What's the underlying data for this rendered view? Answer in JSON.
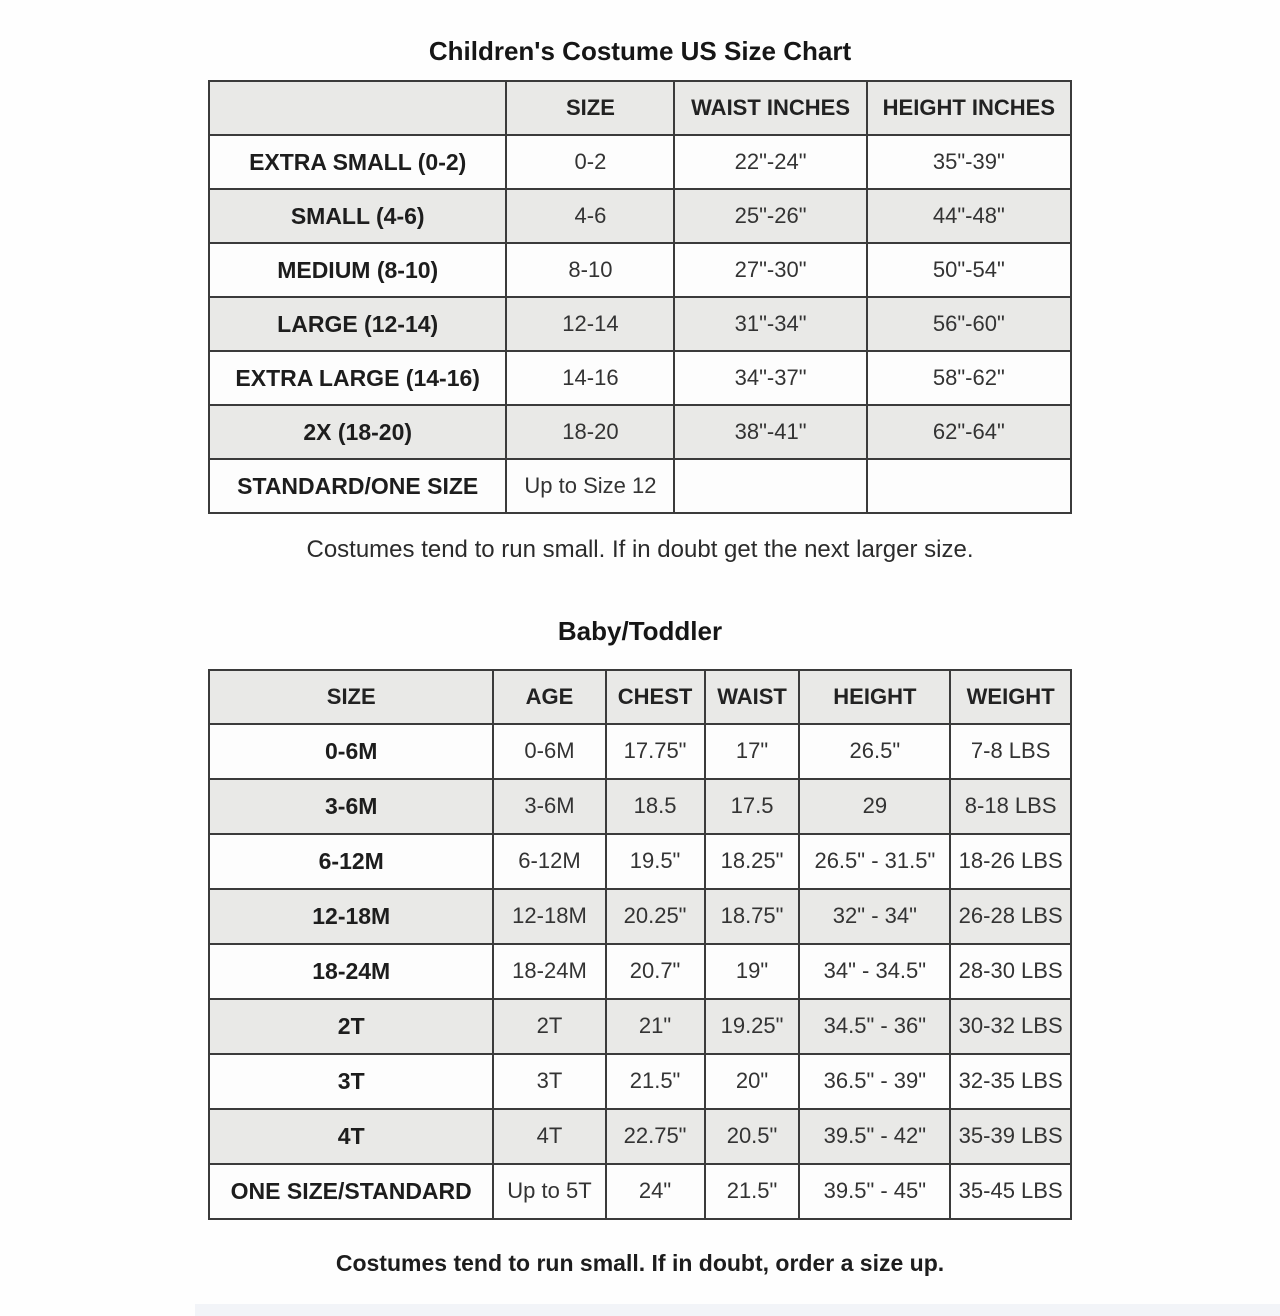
{
  "page": {
    "title": "Children's Costume US Size Chart",
    "note_children": "Costumes tend to run small. If in doubt get the next larger size.",
    "subtitle": "Baby/Toddler",
    "note_baby": "Costumes tend to run small. If in doubt, order a size up."
  },
  "children_table": {
    "headers": [
      "",
      "SIZE",
      "WAIST INCHES",
      "HEIGHT INCHES"
    ],
    "rows": [
      [
        "EXTRA SMALL (0-2)",
        "0-2",
        "22\"-24\"",
        "35\"-39\""
      ],
      [
        "SMALL (4-6)",
        "4-6",
        "25\"-26\"",
        "44\"-48\""
      ],
      [
        "MEDIUM (8-10)",
        "8-10",
        "27\"-30\"",
        "50\"-54\""
      ],
      [
        "LARGE (12-14)",
        "12-14",
        "31\"-34\"",
        "56\"-60\""
      ],
      [
        "EXTRA LARGE (14-16)",
        "14-16",
        "34\"-37\"",
        "58\"-62\""
      ],
      [
        "2X (18-20)",
        "18-20",
        "38\"-41\"",
        "62\"-64\""
      ],
      [
        "STANDARD/ONE SIZE",
        "Up to Size 12",
        "",
        ""
      ]
    ]
  },
  "baby_table": {
    "headers": [
      "SIZE",
      "AGE",
      "CHEST",
      "WAIST",
      "HEIGHT",
      "WEIGHT"
    ],
    "rows": [
      [
        "0-6M",
        "0-6M",
        "17.75\"",
        "17\"",
        "26.5\"",
        "7-8 LBS"
      ],
      [
        "3-6M",
        "3-6M",
        "18.5",
        "17.5",
        "29",
        "8-18 LBS"
      ],
      [
        "6-12M",
        "6-12M",
        "19.5\"",
        "18.25\"",
        "26.5\" - 31.5\"",
        "18-26 LBS"
      ],
      [
        "12-18M",
        "12-18M",
        "20.25\"",
        "18.75\"",
        "32\" - 34\"",
        "26-28 LBS"
      ],
      [
        "18-24M",
        "18-24M",
        "20.7\"",
        "19\"",
        "34\" - 34.5\"",
        "28-30 LBS"
      ],
      [
        "2T",
        "2T",
        "21\"",
        "19.25\"",
        "34.5\" - 36\"",
        "30-32 LBS"
      ],
      [
        "3T",
        "3T",
        "21.5\"",
        "20\"",
        "36.5\" - 39\"",
        "32-35 LBS"
      ],
      [
        "4T",
        "4T",
        "22.75\"",
        "20.5\"",
        "39.5\" - 42\"",
        "35-39 LBS"
      ],
      [
        "ONE SIZE/STANDARD",
        "Up to 5T",
        "24\"",
        "21.5\"",
        "39.5\" - 45\"",
        "35-45 LBS"
      ]
    ]
  }
}
